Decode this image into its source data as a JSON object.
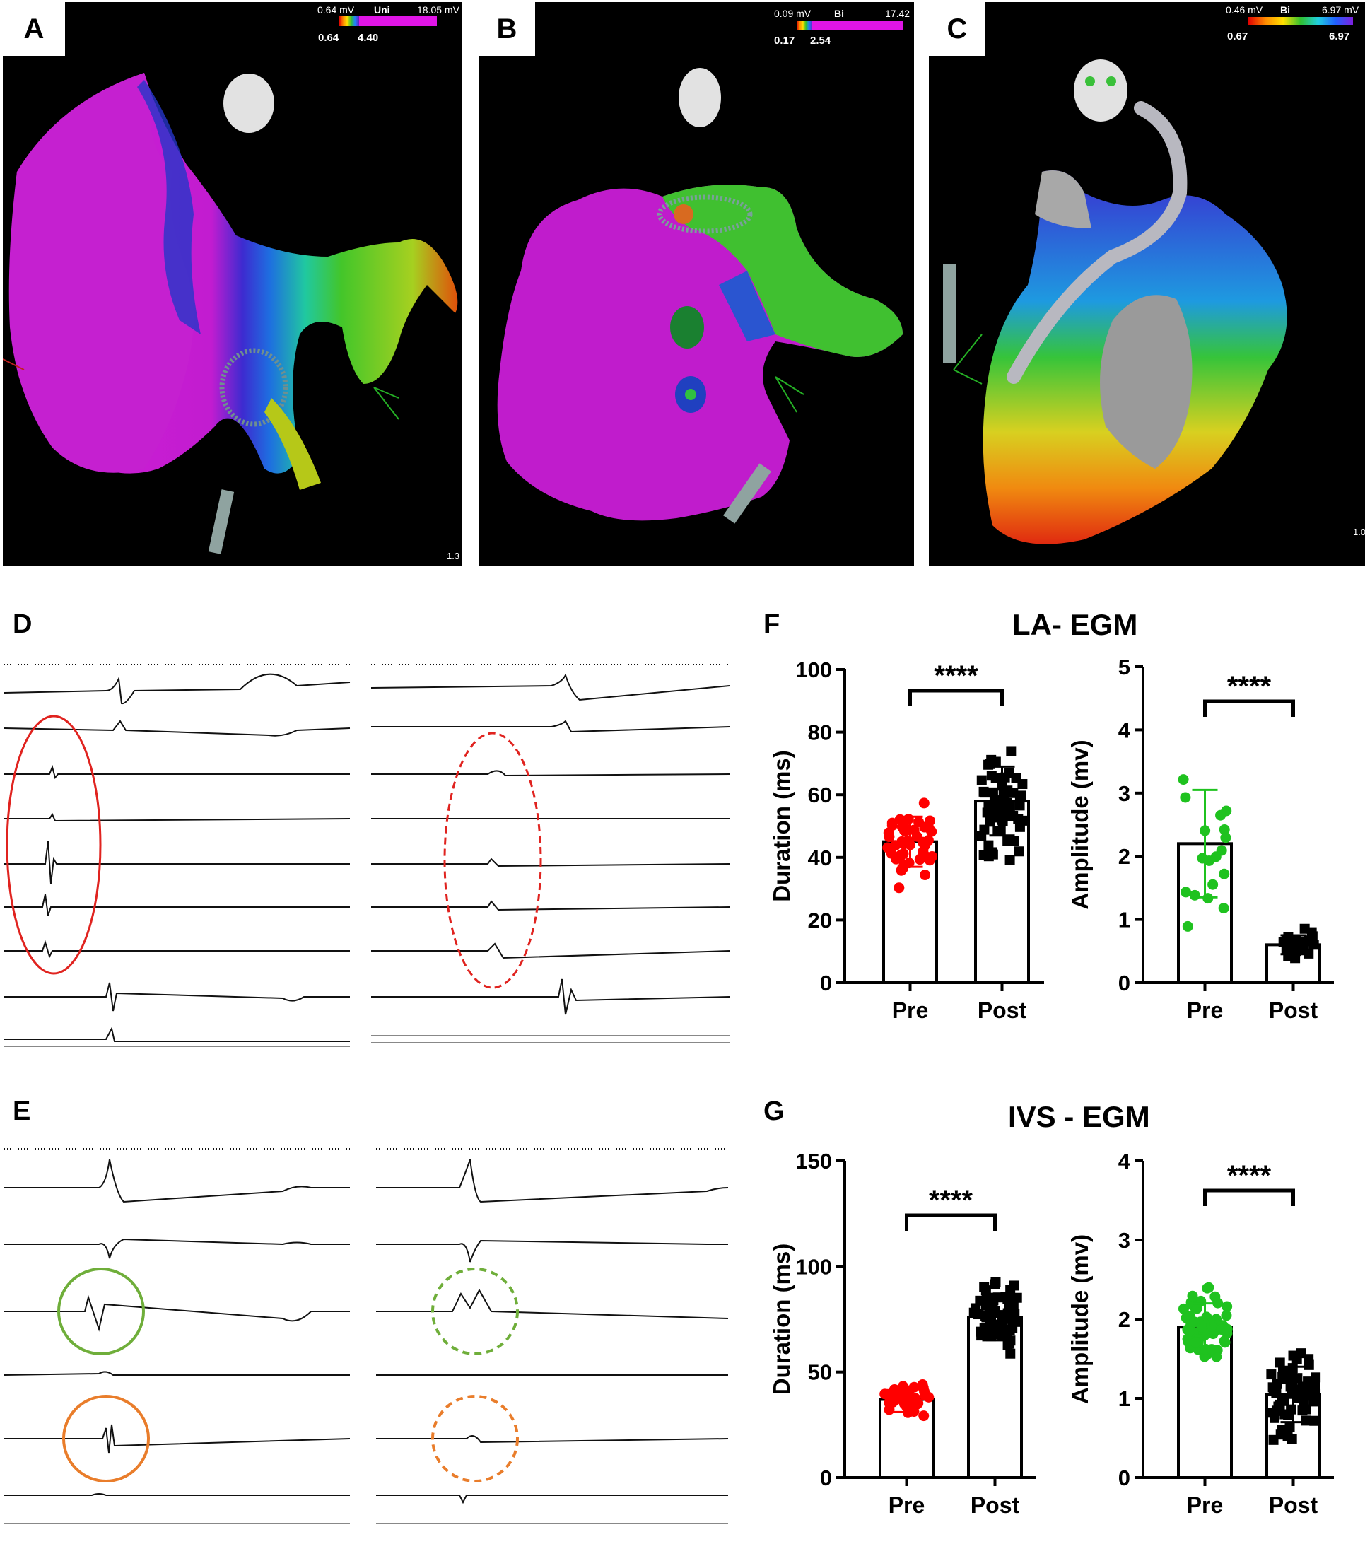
{
  "panels": {
    "A": {
      "letter": "A",
      "scale_min": "0.64 mV",
      "scale_type": "Uni",
      "scale_max": "18.05 mV",
      "low": "0.64",
      "high": "4.40",
      "corner": "1.3"
    },
    "B": {
      "letter": "B",
      "scale_min": "0.09 mV",
      "scale_type": "Bi",
      "scale_max": "17.42",
      "low": "0.17",
      "high": "2.54"
    },
    "C": {
      "letter": "C",
      "scale_min": "0.46 mV",
      "scale_type": "Bi",
      "scale_max": "6.97 mV",
      "low": "0.67",
      "high": "6.97",
      "corner": "1.0"
    },
    "D": {
      "letter": "D"
    },
    "E": {
      "letter": "E"
    },
    "F": {
      "letter": "F",
      "title": "LA- EGM"
    },
    "G": {
      "letter": "G",
      "title": "IVS - EGM"
    }
  },
  "colors": {
    "pre_duration": "#ff0000",
    "pre_amplitude": "#1fc21f",
    "post": "#000000",
    "ring_red": "#e0231f",
    "ring_green": "#6fae3a",
    "ring_orange": "#e97d2b"
  },
  "chart_data": [
    {
      "id": "F-duration",
      "type": "bar",
      "categories": [
        "Pre",
        "Post"
      ],
      "values": [
        45,
        58
      ],
      "sd": [
        8,
        11
      ],
      "ylabel": "Duration (ms)",
      "ylim": [
        0,
        100
      ],
      "yticks": [
        "0",
        "20",
        "40",
        "60",
        "80",
        "100"
      ],
      "significance": "****"
    },
    {
      "id": "F-amplitude",
      "type": "bar",
      "categories": [
        "Pre",
        "Post"
      ],
      "values": [
        2.2,
        0.6
      ],
      "sd": [
        0.85,
        0.15
      ],
      "ylabel": "Amplitude (mv)",
      "ylim": [
        0,
        5
      ],
      "yticks": [
        "0",
        "1",
        "2",
        "3",
        "4",
        "5"
      ],
      "significance": "****"
    },
    {
      "id": "G-duration",
      "type": "bar",
      "categories": [
        "Pre",
        "Post"
      ],
      "values": [
        37,
        76
      ],
      "sd": [
        6,
        11
      ],
      "ylabel": "Duration (ms)",
      "ylim": [
        0,
        150
      ],
      "yticks": [
        "0",
        "50",
        "100",
        "150"
      ],
      "significance": "****"
    },
    {
      "id": "G-amplitude",
      "type": "bar",
      "categories": [
        "Pre",
        "Post"
      ],
      "values": [
        1.9,
        1.05
      ],
      "sd": [
        0.3,
        0.35
      ],
      "ylabel": "Amplitude (mv)",
      "ylim": [
        0,
        4
      ],
      "yticks": [
        "0",
        "1",
        "2",
        "3",
        "4"
      ],
      "significance": "****"
    }
  ]
}
